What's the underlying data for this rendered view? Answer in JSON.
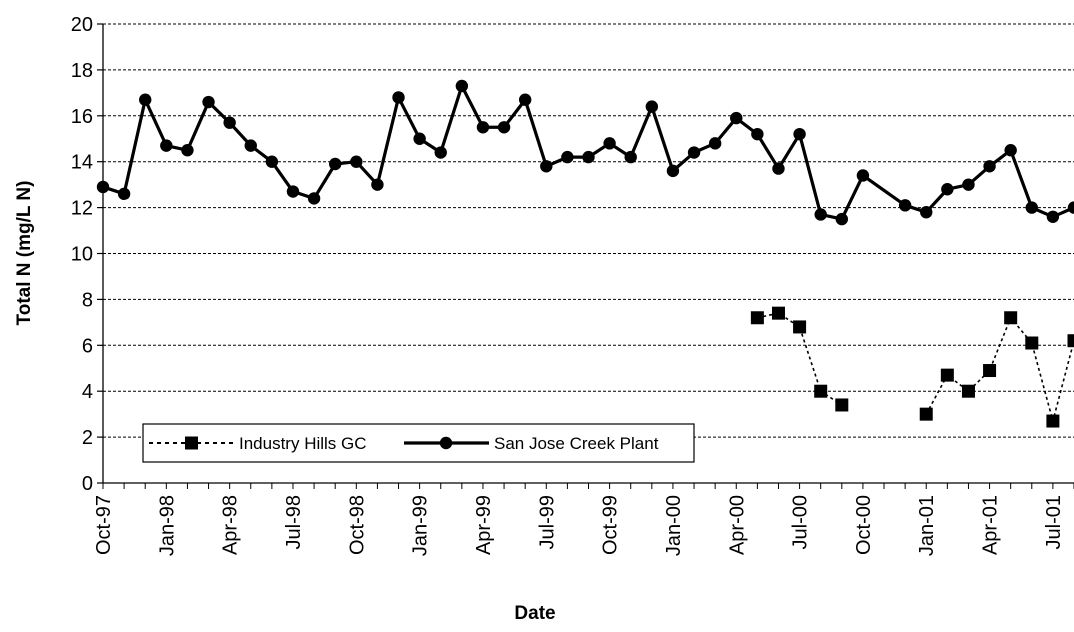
{
  "chart_data": {
    "type": "line",
    "xlabel": "Date",
    "ylabel": "Total N (mg/L N)",
    "ylim": [
      0,
      20
    ],
    "yticks": [
      0,
      2,
      4,
      6,
      8,
      10,
      12,
      14,
      16,
      18,
      20
    ],
    "xticks": [
      "Oct-97",
      "Jan-98",
      "Apr-98",
      "Jul-98",
      "Oct-98",
      "Jan-99",
      "Apr-99",
      "Jul-99",
      "Oct-99",
      "Jan-00",
      "Apr-00",
      "Jul-00",
      "Oct-00",
      "Jan-01",
      "Apr-01",
      "Jul-01"
    ],
    "xlim": [
      "1997-10-01",
      "2001-08-01"
    ],
    "grid": "horizontal-dashed",
    "legend": "bottom-left",
    "series": [
      {
        "name": "San Jose Creek Plant",
        "style": "solid",
        "marker": "circle",
        "color": "#000000",
        "points": [
          [
            "1997-10-01",
            12.9
          ],
          [
            "1997-11-01",
            12.6
          ],
          [
            "1997-12-01",
            16.7
          ],
          [
            "1998-01-01",
            14.7
          ],
          [
            "1998-02-01",
            14.5
          ],
          [
            "1998-03-01",
            16.6
          ],
          [
            "1998-04-01",
            15.7
          ],
          [
            "1998-05-01",
            14.7
          ],
          [
            "1998-06-01",
            14.0
          ],
          [
            "1998-07-01",
            12.7
          ],
          [
            "1998-08-01",
            12.4
          ],
          [
            "1998-09-01",
            13.9
          ],
          [
            "1998-10-01",
            14.0
          ],
          [
            "1998-11-01",
            13.0
          ],
          [
            "1998-12-01",
            16.8
          ],
          [
            "1999-01-01",
            15.0
          ],
          [
            "1999-02-01",
            14.4
          ],
          [
            "1999-03-01",
            17.3
          ],
          [
            "1999-04-01",
            15.5
          ],
          [
            "1999-05-01",
            15.5
          ],
          [
            "1999-06-01",
            16.7
          ],
          [
            "1999-07-01",
            13.8
          ],
          [
            "1999-08-01",
            14.2
          ],
          [
            "1999-09-01",
            14.2
          ],
          [
            "1999-10-01",
            14.8
          ],
          [
            "1999-11-01",
            14.2
          ],
          [
            "1999-12-01",
            16.4
          ],
          [
            "2000-01-01",
            13.6
          ],
          [
            "2000-02-01",
            14.4
          ],
          [
            "2000-03-01",
            14.8
          ],
          [
            "2000-04-01",
            15.9
          ],
          [
            "2000-05-01",
            15.2
          ],
          [
            "2000-06-01",
            13.7
          ],
          [
            "2000-07-01",
            15.2
          ],
          [
            "2000-08-01",
            11.7
          ],
          [
            "2000-09-01",
            11.5
          ],
          [
            "2000-10-01",
            13.4
          ],
          [
            "2000-12-01",
            12.1
          ],
          [
            "2001-01-01",
            11.8
          ],
          [
            "2001-02-01",
            12.8
          ],
          [
            "2001-03-01",
            13.0
          ],
          [
            "2001-04-01",
            13.8
          ],
          [
            "2001-05-01",
            14.5
          ],
          [
            "2001-06-01",
            12.0
          ],
          [
            "2001-07-01",
            11.6
          ],
          [
            "2001-08-01",
            12.0
          ]
        ]
      },
      {
        "name": "Industry Hills GC",
        "style": "dotted",
        "marker": "square",
        "color": "#000000",
        "points": [
          [
            "2000-05-01",
            7.2
          ],
          [
            "2000-06-01",
            7.4
          ],
          [
            "2000-07-01",
            6.8
          ],
          [
            "2000-08-01",
            4.0
          ],
          [
            "2000-09-01",
            3.4
          ],
          [
            "2001-01-01",
            3.0
          ],
          [
            "2001-02-01",
            4.7
          ],
          [
            "2001-03-01",
            4.0
          ],
          [
            "2001-04-01",
            4.9
          ],
          [
            "2001-05-01",
            7.2
          ],
          [
            "2001-06-01",
            6.1
          ],
          [
            "2001-07-01",
            2.7
          ],
          [
            "2001-08-01",
            6.2
          ]
        ]
      }
    ]
  }
}
